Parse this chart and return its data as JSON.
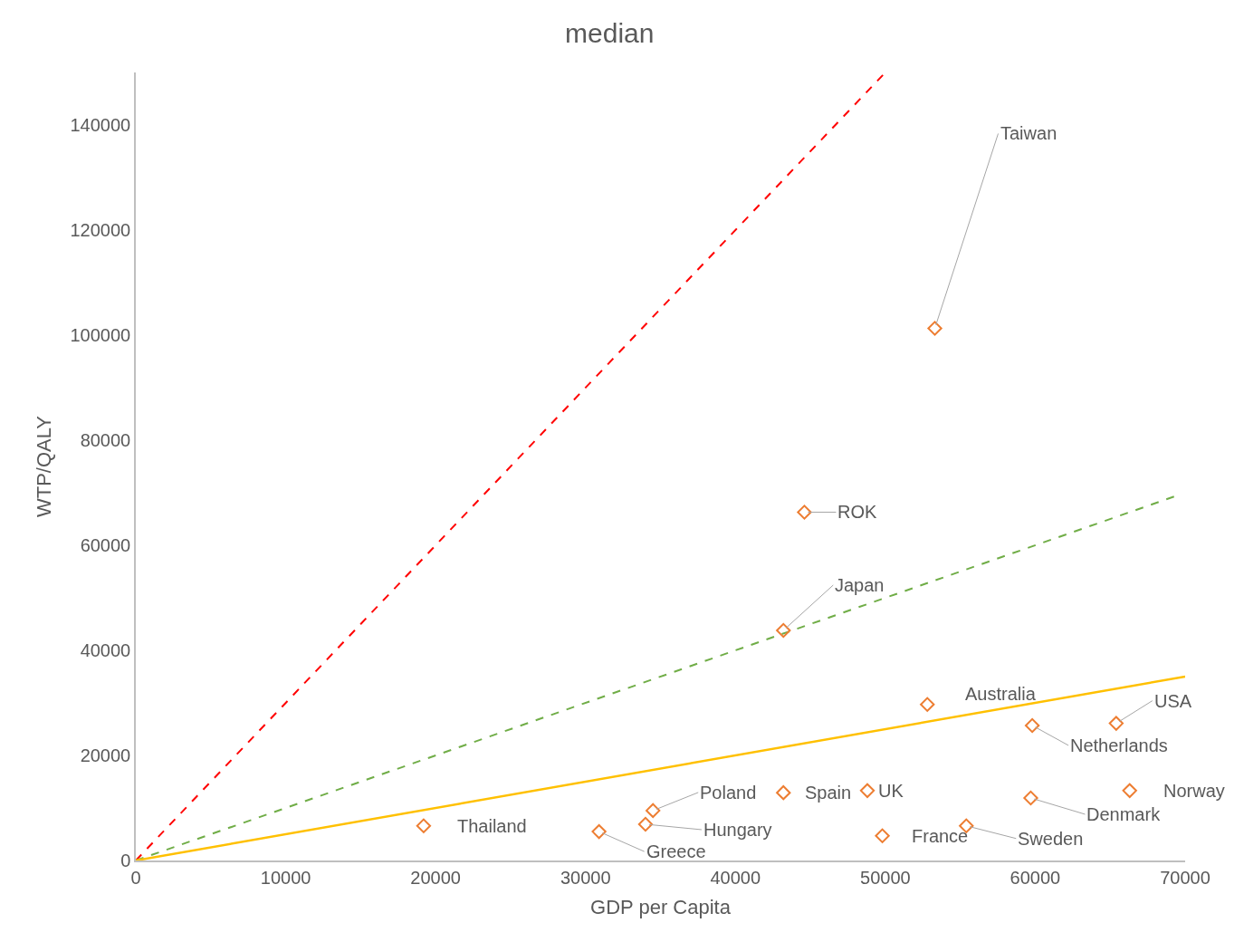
{
  "chart_data": {
    "type": "scatter",
    "title": "median",
    "xlabel": "GDP per Capita",
    "ylabel": "WTP/QALY",
    "xlim": [
      0,
      70000
    ],
    "xticks": [
      0,
      10000,
      20000,
      30000,
      40000,
      50000,
      60000,
      70000
    ],
    "ylim": [
      0,
      150000
    ],
    "yticks": [
      0,
      20000,
      40000,
      60000,
      80000,
      100000,
      120000,
      140000
    ],
    "marker": "diamond",
    "series": [
      {
        "type": "line",
        "marker": "none",
        "color": "#ff0000",
        "line_style": "dashed",
        "x": [
          0,
          50000
        ],
        "values": [
          0,
          150000
        ]
      },
      {
        "type": "line",
        "marker": "none",
        "color": "#70ad47",
        "line_style": "dashed",
        "x": [
          0,
          69500
        ],
        "values": [
          0,
          69500
        ]
      },
      {
        "type": "line",
        "marker": "none",
        "color": "#ffc000",
        "line_style": "solid",
        "x": [
          0,
          70000
        ],
        "values": [
          0,
          35000
        ]
      },
      {
        "color": "#ed7d31",
        "x": [
          53300,
          44600,
          43200,
          52800,
          59800,
          65400,
          66300,
          59700,
          55400,
          49800,
          48800,
          43200,
          34500,
          34000,
          30900,
          19200
        ],
        "values": [
          101300,
          66300,
          43800,
          29700,
          25700,
          26100,
          13300,
          11900,
          6600,
          4700,
          13300,
          12900,
          9500,
          6900,
          5500,
          6600
        ]
      }
    ],
    "annotations": [
      {
        "text": "Taiwan",
        "x": 53300,
        "y": 101300
      },
      {
        "text": "ROK",
        "x": 44600,
        "y": 66300
      },
      {
        "text": "Japan",
        "x": 43200,
        "y": 43800
      },
      {
        "text": "Australia",
        "x": 52800,
        "y": 29700
      },
      {
        "text": "Netherlands",
        "x": 59800,
        "y": 25700
      },
      {
        "text": "USA",
        "x": 65400,
        "y": 26100
      },
      {
        "text": "Norway",
        "x": 66300,
        "y": 13300
      },
      {
        "text": "Denmark",
        "x": 59700,
        "y": 11900
      },
      {
        "text": "Sweden",
        "x": 55400,
        "y": 6600
      },
      {
        "text": "France",
        "x": 49800,
        "y": 4700
      },
      {
        "text": "UK",
        "x": 48800,
        "y": 13300
      },
      {
        "text": "Spain",
        "x": 43200,
        "y": 12900
      },
      {
        "text": "Poland",
        "x": 34500,
        "y": 9500
      },
      {
        "text": "Hungary",
        "x": 34000,
        "y": 6900
      },
      {
        "text": "Greece",
        "x": 30900,
        "y": 5500
      },
      {
        "text": "Thailand",
        "x": 19200,
        "y": 6600
      }
    ]
  }
}
